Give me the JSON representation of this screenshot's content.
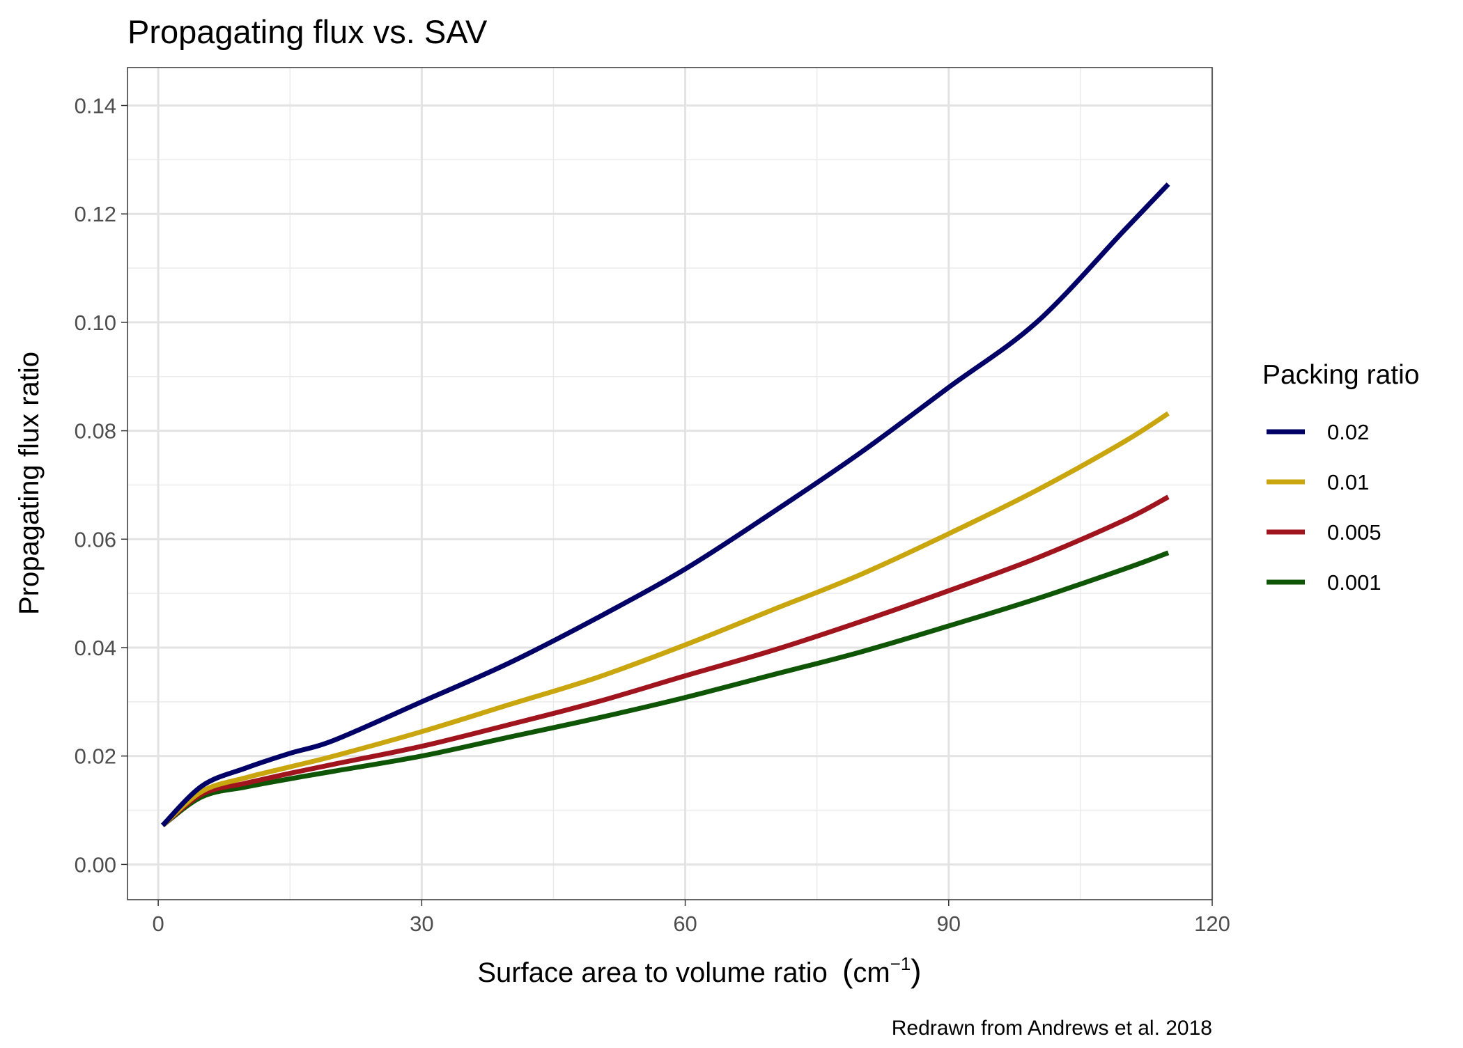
{
  "chart_data": {
    "type": "line",
    "title": "Propagating flux vs. SAV",
    "xlabel": "Surface area to volume ratio",
    "xlabel_unit_base": "cm",
    "xlabel_unit_exponent": "−1",
    "ylabel": "Propagating flux ratio",
    "caption": "Redrawn from Andrews et al. 2018",
    "xlim": [
      -3.5,
      120
    ],
    "ylim": [
      -0.0065,
      0.147
    ],
    "x_ticks": [
      0,
      30,
      60,
      90,
      120
    ],
    "x_tick_labels": [
      "0",
      "30",
      "60",
      "90",
      "120"
    ],
    "x_minor_ticks": [
      15,
      45,
      75,
      105
    ],
    "y_ticks": [
      0.0,
      0.02,
      0.04,
      0.06,
      0.08,
      0.1,
      0.12,
      0.14
    ],
    "y_tick_labels": [
      "0.00",
      "0.02",
      "0.04",
      "0.06",
      "0.08",
      "0.10",
      "0.12",
      "0.14"
    ],
    "y_minor_ticks": [
      0.01,
      0.03,
      0.05,
      0.07,
      0.09,
      0.11,
      0.13
    ],
    "grid": true,
    "legend": {
      "title": "Packing ratio",
      "placement": "right"
    },
    "series": [
      {
        "name": "0.02",
        "color": "#000066",
        "x": [
          0.5,
          5,
          10,
          15,
          20,
          30,
          40,
          50,
          60,
          70,
          80,
          90,
          100,
          110,
          115
        ],
        "y": [
          0.0072,
          0.0145,
          0.0178,
          0.0205,
          0.0229,
          0.03,
          0.0372,
          0.0455,
          0.0545,
          0.065,
          0.076,
          0.088,
          0.1,
          0.117,
          0.1255
        ]
      },
      {
        "name": "0.01",
        "color": "#C9A60E",
        "x": [
          0.5,
          5,
          10,
          15,
          20,
          30,
          40,
          50,
          60,
          70,
          80,
          90,
          100,
          110,
          115
        ],
        "y": [
          0.0072,
          0.0135,
          0.016,
          0.018,
          0.02,
          0.0245,
          0.0295,
          0.0345,
          0.0405,
          0.047,
          0.0535,
          0.061,
          0.069,
          0.078,
          0.0832
        ]
      },
      {
        "name": "0.005",
        "color": "#A0141E",
        "x": [
          0.5,
          5,
          10,
          15,
          20,
          30,
          40,
          50,
          60,
          70,
          80,
          90,
          100,
          110,
          115
        ],
        "y": [
          0.0072,
          0.013,
          0.015,
          0.0168,
          0.0185,
          0.0218,
          0.0258,
          0.03,
          0.0348,
          0.0395,
          0.0448,
          0.0505,
          0.0565,
          0.0635,
          0.0678
        ]
      },
      {
        "name": "0.001",
        "color": "#0F5506",
        "x": [
          0.5,
          5,
          10,
          15,
          20,
          30,
          40,
          50,
          60,
          70,
          80,
          90,
          100,
          110,
          115
        ],
        "y": [
          0.0072,
          0.0125,
          0.0143,
          0.0158,
          0.0172,
          0.02,
          0.0235,
          0.027,
          0.0308,
          0.035,
          0.0392,
          0.044,
          0.049,
          0.0545,
          0.0575
        ]
      }
    ]
  }
}
